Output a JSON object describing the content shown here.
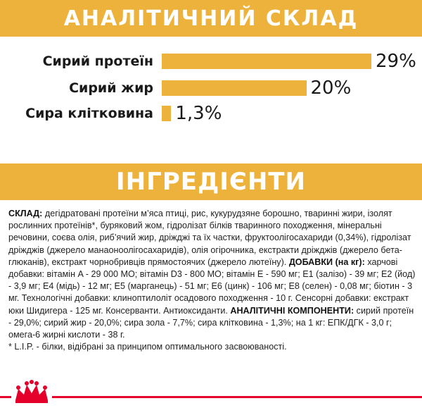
{
  "analysis": {
    "title": "АНАЛІТИЧНИЙ СКЛАД",
    "items": [
      {
        "label": "Сирий протеїн",
        "value": 29,
        "display": "29%"
      },
      {
        "label": "Сирий жир",
        "value": 20,
        "display": "20%"
      },
      {
        "label": "Сира клітковина",
        "value": 1.3,
        "display": "1,3%"
      }
    ],
    "bar_color": "#ecb23c"
  },
  "ingredients": {
    "title": "ІНГРЕДІЄНТИ",
    "composition_heading": "СКЛАД:",
    "composition_text": " дегідратовані протеїни м’яса птиці, рис, кукурудзяне борошно, тваринні жири, ізолят рослинних протеїнів*, буряковий жом, гідролізат білків тваринного походження, мінеральні речовини, соєва олія, риб’ячий жир, дріжджі та їх частки, фруктоолігосахариди (0,34%), гідролізат дріжджів (джерело манаоноолігосахаридів), олія огірочника, екстракти дріжджів (джерело бета-глюканів), екстракт чорнобривців прямостоячих (джерело лютеїну). ",
    "additives_heading": "ДОБАВКИ (на кг):",
    "additives_text": " харчові добавки: вітамін A - 29 000 МО; вітамін D3 - 800 МО; вітамін E - 590 мг; E1 (залізо) - 39 мг; E2 (йод) - 3,9 мг; E4 (мідь) - 12 мг; E5 (марганець) - 51 мг; E6 (цинк) - 106 мг; E8 (селен) - 0,08 мг; біотин - 3 мг. Технологічні добавки: клиноптилоліт осадового походження - 10 г. Сенсорні добавки: екстракт юки Шидигера - 125 мг. Консерванти. Антиоксиданти.",
    "components_heading": "АНАЛІТИЧНІ КОМПОНЕНТИ:",
    "components_text": " сирий протеїн - 29,0%; сирий жир - 20,0%; сира зола - 7,7%; сира клітковина - 1,3%; на 1 кг: ЕПК/ДГК - 3,0 г; омега-6 жирні кислоти - 38 г.",
    "footnote": "* L.I.P. - білки, відібрані за принципом оптимального засвоюваності."
  },
  "colors": {
    "accent": "#ecb23c",
    "footer_line": "#e4002b"
  },
  "logo": {
    "name": "crown-logo-icon"
  }
}
